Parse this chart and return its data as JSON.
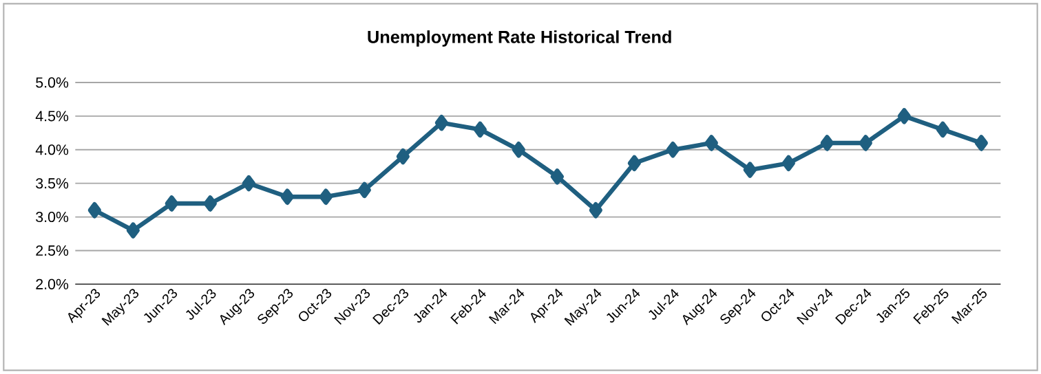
{
  "chart_data": {
    "type": "line",
    "title": "Unemployment Rate Historical Trend",
    "categories": [
      "Apr-23",
      "May-23",
      "Jun-23",
      "Jul-23",
      "Aug-23",
      "Sep-23",
      "Oct-23",
      "Nov-23",
      "Dec-23",
      "Jan-24",
      "Feb-24",
      "Mar-24",
      "Apr-24",
      "May-24",
      "Jun-24",
      "Jul-24",
      "Aug-24",
      "Sep-24",
      "Oct-24",
      "Nov-24",
      "Dec-24",
      "Jan-25",
      "Feb-25",
      "Mar-25"
    ],
    "values": [
      3.1,
      2.8,
      3.2,
      3.2,
      3.5,
      3.3,
      3.3,
      3.4,
      3.9,
      4.4,
      4.3,
      4.0,
      3.6,
      3.1,
      3.8,
      4.0,
      4.1,
      3.7,
      3.8,
      4.1,
      4.1,
      4.5,
      4.3,
      4.1
    ],
    "color": "#1f5f80",
    "ylim": [
      2.0,
      5.0
    ],
    "yticks": [
      {
        "value": 2.0,
        "label": "2.0%"
      },
      {
        "value": 2.5,
        "label": "2.5%"
      },
      {
        "value": 3.0,
        "label": "3.0%"
      },
      {
        "value": 3.5,
        "label": "3.5%"
      },
      {
        "value": 4.0,
        "label": "4.0%"
      },
      {
        "value": 4.5,
        "label": "4.5%"
      },
      {
        "value": 5.0,
        "label": "5.0%"
      }
    ],
    "grid": "y",
    "marker": "diamond",
    "line_style": "solid"
  }
}
